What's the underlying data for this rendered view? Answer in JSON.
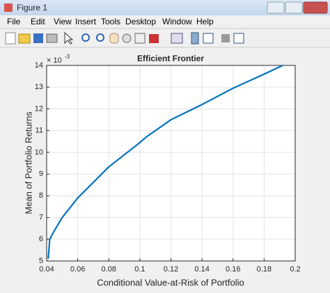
{
  "window": {
    "title": "Figure 1",
    "menu": [
      "File",
      "Edit",
      "View",
      "Insert",
      "Tools",
      "Desktop",
      "Window",
      "Help"
    ]
  },
  "chart_data": {
    "type": "line",
    "title": "Efficient Frontier",
    "xlabel": "Conditional Value-at-Risk of Portfolio",
    "ylabel": "Mean of Portfolio Returns",
    "y_multiplier": {
      "base": "× 10",
      "exponent": "-3"
    },
    "x": [
      0.041,
      0.042,
      0.045,
      0.05,
      0.06,
      0.08,
      0.1,
      0.104,
      0.12,
      0.14,
      0.16,
      0.18,
      0.192
    ],
    "values": [
      5.1,
      6.0,
      6.4,
      7.0,
      7.9,
      9.33,
      10.45,
      10.7,
      11.5,
      12.2,
      12.95,
      13.6,
      14
    ],
    "color": "#0072bd",
    "xlim": [
      0.04,
      0.2
    ],
    "xticks": [
      0.04,
      0.06,
      0.08,
      0.1,
      0.12,
      0.14,
      0.16,
      0.18,
      0.2
    ],
    "ylim": [
      5,
      14
    ],
    "yticks": [
      5,
      6,
      7,
      8,
      9,
      10,
      11,
      12,
      13,
      14
    ],
    "grid": true
  }
}
